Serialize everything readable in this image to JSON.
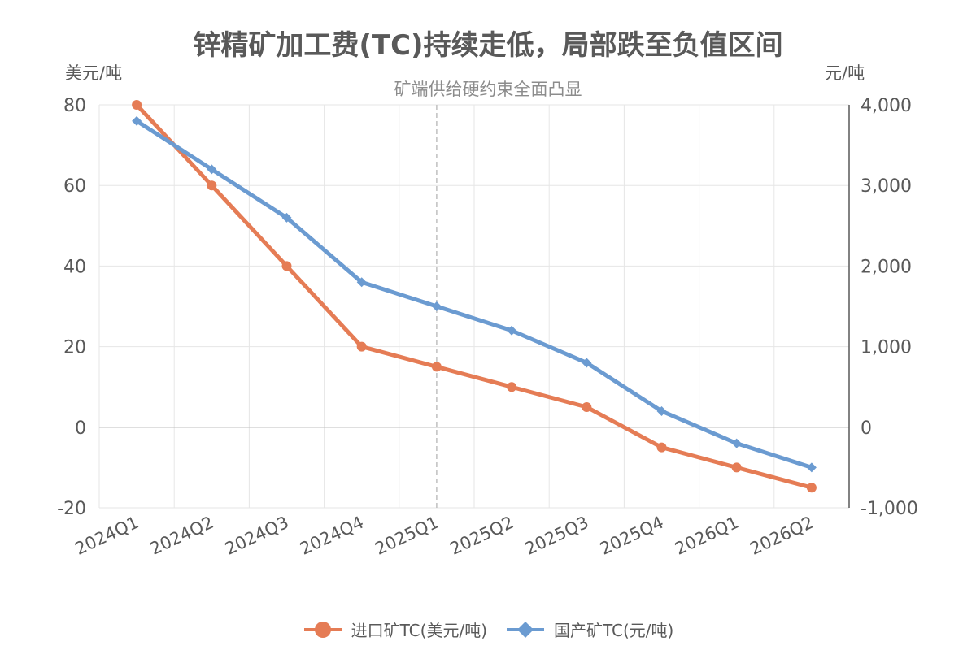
{
  "chart_data": {
    "type": "line",
    "title": "锌精矿加工费(TC)持续走低，局部跌至负值区间",
    "subtitle": "矿端供给硬约束全面凸显",
    "left_axis_unit": "美元/吨",
    "right_axis_unit": "元/吨",
    "categories": [
      "2024Q1",
      "2024Q2",
      "2024Q3",
      "2024Q4",
      "2025Q1",
      "2025Q2",
      "2025Q3",
      "2025Q4",
      "2026Q1",
      "2026Q2"
    ],
    "left_axis": {
      "min": -20,
      "max": 80,
      "ticks": [
        -20,
        0,
        20,
        40,
        60,
        80
      ],
      "tick_labels": [
        "-20",
        "0",
        "20",
        "40",
        "60",
        "80"
      ]
    },
    "right_axis": {
      "min": -1000,
      "max": 4000,
      "ticks": [
        -1000,
        0,
        1000,
        2000,
        3000,
        4000
      ],
      "tick_labels": [
        "-1,000",
        "0",
        "1,000",
        "2,000",
        "3,000",
        "4,000"
      ]
    },
    "series": [
      {
        "name": "进口矿TC(美元/吨)",
        "axis": "left",
        "marker": "circle",
        "color": "#E57C55",
        "values": [
          80,
          60,
          40,
          20,
          15,
          10,
          5,
          -5,
          -10,
          -15
        ]
      },
      {
        "name": "国产矿TC(元/吨)",
        "axis": "right",
        "marker": "diamond",
        "color": "#6B9BD1",
        "values": [
          3800,
          3200,
          2600,
          1800,
          1500,
          1200,
          800,
          200,
          -200,
          -500
        ]
      }
    ],
    "reference_line": {
      "category": "2025Q1",
      "style": "dashed"
    },
    "grid": true,
    "legend_position": "bottom"
  }
}
